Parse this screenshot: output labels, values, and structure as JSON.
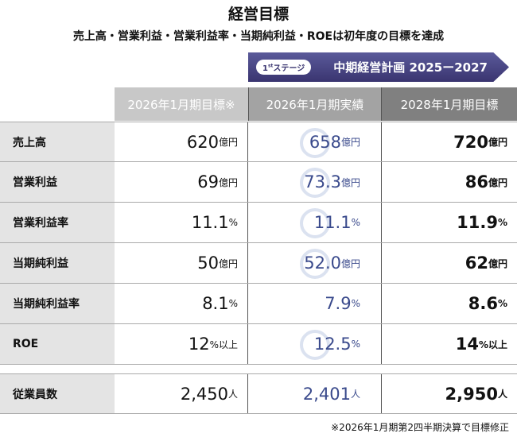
{
  "title": "経営目標",
  "subtitle": "売上高・営業利益・営業利益率・当期純利益・ROEは初年度の目標を達成",
  "banner": {
    "stage": "1",
    "stage_sup": "st",
    "stage_label": "ステージ",
    "plan": "中期経営計画 2025ー2027"
  },
  "headers": [
    "2026年1月期目標※",
    "2026年1月期実績",
    "2028年1月期目標"
  ],
  "rows": [
    {
      "label": "売上高",
      "c1": "620",
      "u1": "億円",
      "c2": "658",
      "u2": "億円",
      "c3": "720",
      "u3": "億円",
      "achieved": true
    },
    {
      "label": "営業利益",
      "c1": "69",
      "u1": "億円",
      "c2": "73.3",
      "u2": "億円",
      "c3": "86",
      "u3": "億円",
      "achieved": true
    },
    {
      "label": "営業利益率",
      "c1": "11.1",
      "u1": "%",
      "c2": "11.1",
      "u2": "%",
      "c3": "11.9",
      "u3": "%",
      "achieved": true
    },
    {
      "label": "当期純利益",
      "c1": "50",
      "u1": "億円",
      "c2": "52.0",
      "u2": "億円",
      "c3": "62",
      "u3": "億円",
      "achieved": true
    },
    {
      "label": "当期純利益率",
      "c1": "8.1",
      "u1": "%",
      "c2": "7.9",
      "u2": "%",
      "c3": "8.6",
      "u3": "%",
      "achieved": false
    },
    {
      "label": "ROE",
      "c1": "12",
      "u1": "%以上",
      "c2": "12.5",
      "u2": "%",
      "c3": "14",
      "u3": "%以上",
      "achieved": true
    },
    {
      "label": "従業員数",
      "c1": "2,450",
      "u1": "人",
      "c2": "2,401",
      "u2": "人",
      "c3": "2,950",
      "u3": "人",
      "achieved": false
    }
  ],
  "footnote": "※2026年1月期第2四半期決算で目標修正",
  "colors": {
    "accent": "#3a3570",
    "actual": "#3a4a8c"
  }
}
